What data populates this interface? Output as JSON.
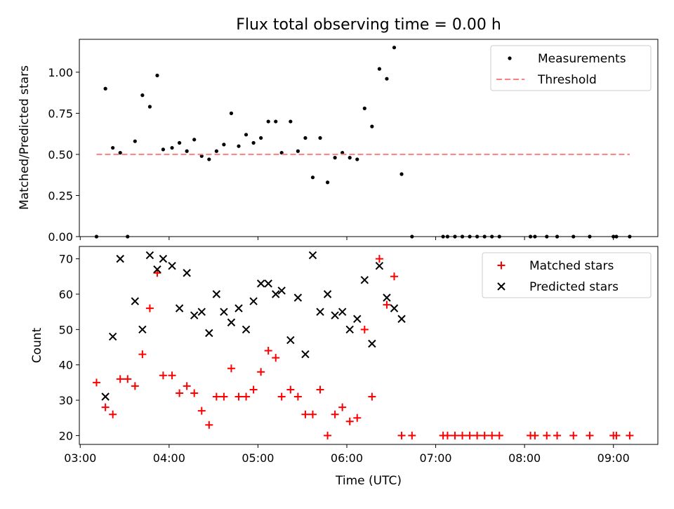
{
  "title": "Flux total observing time = 0.00 h",
  "chart_data": [
    {
      "type": "scatter",
      "panel": "top",
      "ylabel": "Matched/Predicted stars",
      "xlabel": "",
      "xlim_hours": [
        2.99,
        9.5
      ],
      "ylim": [
        0,
        1.2
      ],
      "yticks": [
        0.0,
        0.25,
        0.5,
        0.75,
        1.0
      ],
      "ytick_labels": [
        "0.00",
        "0.25",
        "0.50",
        "0.75",
        "1.00"
      ],
      "legend_position": "top-right",
      "series": [
        {
          "name": "Measurements",
          "marker": "dot",
          "color": "#000000",
          "points": [
            [
              "03:11",
              0.0
            ],
            [
              "03:17",
              0.9
            ],
            [
              "03:22",
              0.54
            ],
            [
              "03:27",
              0.51
            ],
            [
              "03:32",
              0.0
            ],
            [
              "03:37",
              0.58
            ],
            [
              "03:42",
              0.86
            ],
            [
              "03:47",
              0.79
            ],
            [
              "03:52",
              0.98
            ],
            [
              "03:56",
              0.53
            ],
            [
              "04:02",
              0.54
            ],
            [
              "04:07",
              0.57
            ],
            [
              "04:12",
              0.52
            ],
            [
              "04:17",
              0.59
            ],
            [
              "04:22",
              0.49
            ],
            [
              "04:27",
              0.47
            ],
            [
              "04:32",
              0.52
            ],
            [
              "04:37",
              0.56
            ],
            [
              "04:42",
              0.75
            ],
            [
              "04:47",
              0.55
            ],
            [
              "04:52",
              0.62
            ],
            [
              "04:57",
              0.57
            ],
            [
              "05:02",
              0.6
            ],
            [
              "05:07",
              0.7
            ],
            [
              "05:12",
              0.7
            ],
            [
              "05:16",
              0.51
            ],
            [
              "05:22",
              0.7
            ],
            [
              "05:27",
              0.52
            ],
            [
              "05:32",
              0.6
            ],
            [
              "05:37",
              0.36
            ],
            [
              "05:42",
              0.6
            ],
            [
              "05:47",
              0.33
            ],
            [
              "05:52",
              0.48
            ],
            [
              "05:57",
              0.51
            ],
            [
              "06:02",
              0.48
            ],
            [
              "06:07",
              0.47
            ],
            [
              "06:12",
              0.78
            ],
            [
              "06:17",
              0.67
            ],
            [
              "06:22",
              1.02
            ],
            [
              "06:27",
              0.96
            ],
            [
              "06:32",
              1.15
            ],
            [
              "06:37",
              0.38
            ],
            [
              "06:44",
              0.0
            ],
            [
              "07:05",
              0.0
            ],
            [
              "07:08",
              0.0
            ],
            [
              "07:13",
              0.0
            ],
            [
              "07:18",
              0.0
            ],
            [
              "07:23",
              0.0
            ],
            [
              "07:28",
              0.0
            ],
            [
              "07:33",
              0.0
            ],
            [
              "07:38",
              0.0
            ],
            [
              "07:43",
              0.0
            ],
            [
              "08:04",
              0.0
            ],
            [
              "08:07",
              0.0
            ],
            [
              "08:15",
              0.0
            ],
            [
              "08:22",
              0.0
            ],
            [
              "08:33",
              0.0
            ],
            [
              "08:44",
              0.0
            ],
            [
              "09:00",
              0.0
            ],
            [
              "09:02",
              0.0
            ],
            [
              "09:11",
              0.0
            ]
          ]
        },
        {
          "name": "Threshold",
          "marker": "dashed-line",
          "color": "#ff7f7f",
          "points": [
            [
              "03:11",
              0.5
            ],
            [
              "09:11",
              0.5
            ]
          ]
        }
      ]
    },
    {
      "type": "scatter",
      "panel": "bottom",
      "ylabel": "Count",
      "xlabel": "Time (UTC)",
      "xlim_hours": [
        2.99,
        9.5
      ],
      "ylim": [
        17.5,
        73.5
      ],
      "yticks": [
        20,
        30,
        40,
        50,
        60,
        70
      ],
      "xticks": [
        "03:00",
        "04:00",
        "05:00",
        "06:00",
        "07:00",
        "08:00",
        "09:00"
      ],
      "legend_position": "top-right",
      "series": [
        {
          "name": "Matched stars",
          "marker": "plus",
          "color": "#ff0000",
          "points": [
            [
              "03:11",
              35
            ],
            [
              "03:17",
              28
            ],
            [
              "03:22",
              26
            ],
            [
              "03:27",
              36
            ],
            [
              "03:32",
              36
            ],
            [
              "03:37",
              34
            ],
            [
              "03:42",
              43
            ],
            [
              "03:47",
              56
            ],
            [
              "03:52",
              66
            ],
            [
              "03:56",
              37
            ],
            [
              "04:02",
              37
            ],
            [
              "04:07",
              32
            ],
            [
              "04:12",
              34
            ],
            [
              "04:17",
              32
            ],
            [
              "04:22",
              27
            ],
            [
              "04:27",
              23
            ],
            [
              "04:32",
              31
            ],
            [
              "04:37",
              31
            ],
            [
              "04:42",
              39
            ],
            [
              "04:47",
              31
            ],
            [
              "04:52",
              31
            ],
            [
              "04:57",
              33
            ],
            [
              "05:02",
              38
            ],
            [
              "05:07",
              44
            ],
            [
              "05:12",
              42
            ],
            [
              "05:16",
              31
            ],
            [
              "05:22",
              33
            ],
            [
              "05:27",
              31
            ],
            [
              "05:32",
              26
            ],
            [
              "05:37",
              26
            ],
            [
              "05:42",
              33
            ],
            [
              "05:47",
              20
            ],
            [
              "05:52",
              26
            ],
            [
              "05:57",
              28
            ],
            [
              "06:02",
              24
            ],
            [
              "06:07",
              25
            ],
            [
              "06:12",
              50
            ],
            [
              "06:17",
              31
            ],
            [
              "06:22",
              70
            ],
            [
              "06:27",
              57
            ],
            [
              "06:32",
              65
            ],
            [
              "06:37",
              20
            ],
            [
              "06:44",
              20
            ],
            [
              "07:05",
              20
            ],
            [
              "07:08",
              20
            ],
            [
              "07:13",
              20
            ],
            [
              "07:18",
              20
            ],
            [
              "07:23",
              20
            ],
            [
              "07:28",
              20
            ],
            [
              "07:33",
              20
            ],
            [
              "07:38",
              20
            ],
            [
              "07:43",
              20
            ],
            [
              "08:04",
              20
            ],
            [
              "08:07",
              20
            ],
            [
              "08:15",
              20
            ],
            [
              "08:22",
              20
            ],
            [
              "08:33",
              20
            ],
            [
              "08:44",
              20
            ],
            [
              "09:00",
              20
            ],
            [
              "09:02",
              20
            ],
            [
              "09:11",
              20
            ]
          ]
        },
        {
          "name": "Predicted stars",
          "marker": "x",
          "color": "#000000",
          "points": [
            [
              "03:17",
              31
            ],
            [
              "03:22",
              48
            ],
            [
              "03:27",
              70
            ],
            [
              "03:37",
              58
            ],
            [
              "03:42",
              50
            ],
            [
              "03:47",
              71
            ],
            [
              "03:52",
              67
            ],
            [
              "03:56",
              70
            ],
            [
              "04:02",
              68
            ],
            [
              "04:07",
              56
            ],
            [
              "04:12",
              66
            ],
            [
              "04:17",
              54
            ],
            [
              "04:22",
              55
            ],
            [
              "04:27",
              49
            ],
            [
              "04:32",
              60
            ],
            [
              "04:37",
              55
            ],
            [
              "04:42",
              52
            ],
            [
              "04:47",
              56
            ],
            [
              "04:52",
              50
            ],
            [
              "04:57",
              58
            ],
            [
              "05:02",
              63
            ],
            [
              "05:07",
              63
            ],
            [
              "05:12",
              60
            ],
            [
              "05:16",
              61
            ],
            [
              "05:22",
              47
            ],
            [
              "05:27",
              59
            ],
            [
              "05:32",
              43
            ],
            [
              "05:37",
              71
            ],
            [
              "05:42",
              55
            ],
            [
              "05:47",
              60
            ],
            [
              "05:52",
              54
            ],
            [
              "05:57",
              55
            ],
            [
              "06:02",
              50
            ],
            [
              "06:07",
              53
            ],
            [
              "06:12",
              64
            ],
            [
              "06:17",
              46
            ],
            [
              "06:22",
              68
            ],
            [
              "06:27",
              59
            ],
            [
              "06:32",
              56
            ],
            [
              "06:37",
              53
            ]
          ]
        }
      ]
    }
  ]
}
